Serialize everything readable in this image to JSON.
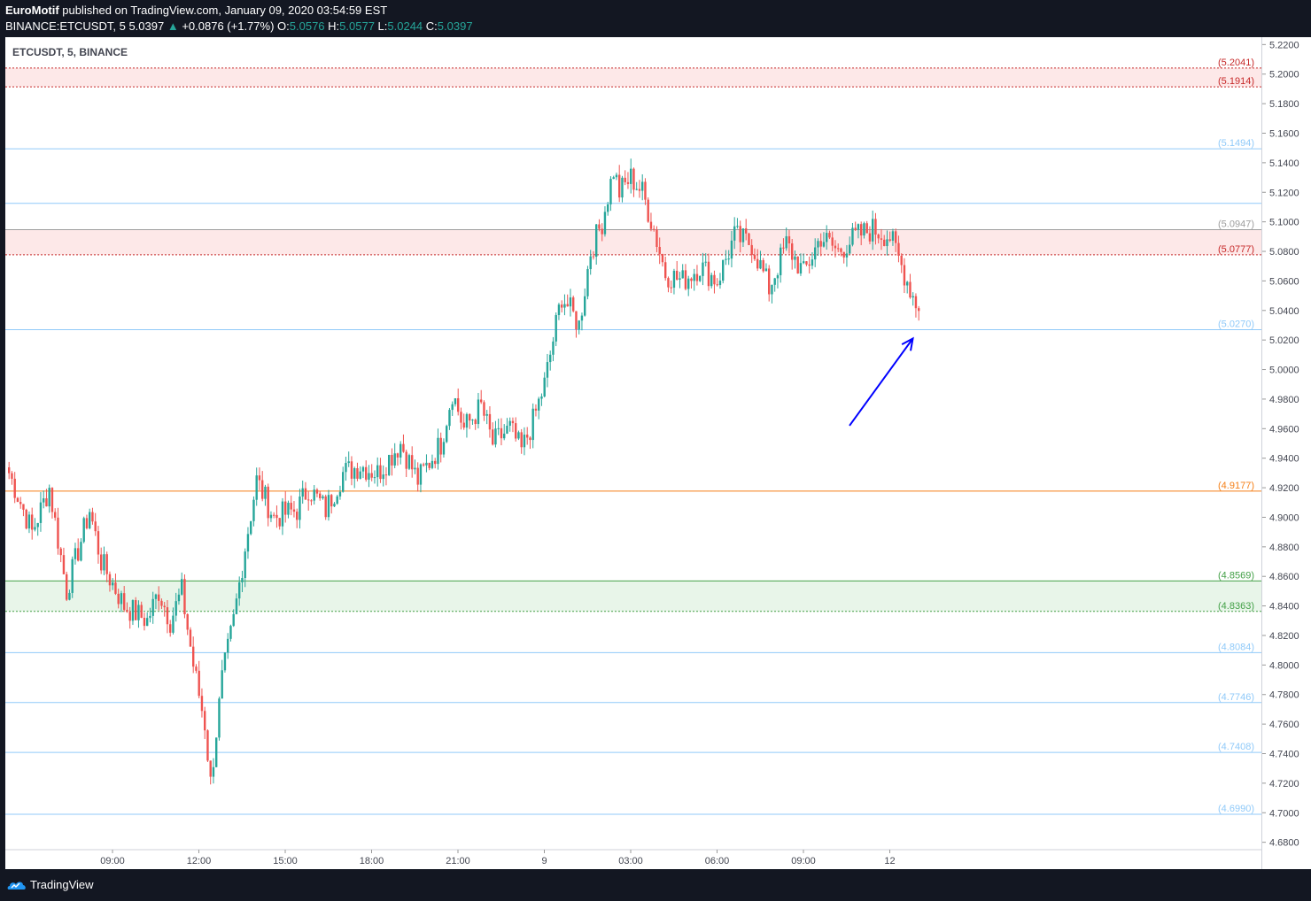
{
  "header": {
    "publisher": "EuroMotif",
    "published_text": "published on TradingView.com, January 09, 2020 03:54:59 EST",
    "symbol_line": "BINANCE:ETCUSDT, 5",
    "last": "5.0397",
    "change": "+0.0876 (+1.77%)",
    "o_label": "O:",
    "o": "5.0576",
    "h_label": "H:",
    "h": "5.0577",
    "l_label": "L:",
    "l": "5.0244",
    "c_label": "C:",
    "c": "5.0397"
  },
  "legend": {
    "symbol": "ETCUSDT, 5, BINANCE"
  },
  "footer": {
    "brand": "TradingView"
  },
  "colors": {
    "up": "#26a69a",
    "down": "#ef5350",
    "arrow": "#0000ff"
  },
  "chart_data": {
    "type": "candlestick",
    "ylim": [
      4.675,
      5.225
    ],
    "y_ticks": [
      "5.2200",
      "5.2000",
      "5.1800",
      "5.1600",
      "5.1400",
      "5.1200",
      "5.1000",
      "5.0800",
      "5.0600",
      "5.0400",
      "5.0200",
      "5.0000",
      "4.9800",
      "4.9600",
      "4.9400",
      "4.9200",
      "4.9000",
      "4.8800",
      "4.8600",
      "4.8400",
      "4.8200",
      "4.8000",
      "4.7800",
      "4.7600",
      "4.7400",
      "4.7200",
      "4.7000",
      "4.6800"
    ],
    "x_ticks": [
      "09:00",
      "12:00",
      "15:00",
      "18:00",
      "21:00",
      "9",
      "03:00",
      "06:00",
      "09:00",
      "12"
    ],
    "levels": [
      {
        "price": 5.2041,
        "label": "(5.2041)",
        "color": "#c62828"
      },
      {
        "price": 5.1914,
        "label": "(5.1914)",
        "color": "#c62828"
      },
      {
        "price": 5.1494,
        "label": "(5.1494)",
        "color": "#90caf9"
      },
      {
        "price": 5.1125,
        "label": "",
        "color": "#90caf9"
      },
      {
        "price": 5.0947,
        "label": "(5.0947)",
        "color": "#9e9e9e"
      },
      {
        "price": 5.0777,
        "label": "(5.0777)",
        "color": "#c62828"
      },
      {
        "price": 5.027,
        "label": "(5.0270)",
        "color": "#90caf9"
      },
      {
        "price": 4.9177,
        "label": "(4.9177)",
        "color": "#f57f17"
      },
      {
        "price": 4.8569,
        "label": "(4.8569)",
        "color": "#43a047"
      },
      {
        "price": 4.8363,
        "label": "(4.8363)",
        "color": "#43a047"
      },
      {
        "price": 4.8084,
        "label": "(4.8084)",
        "color": "#90caf9"
      },
      {
        "price": 4.7746,
        "label": "(4.7746)",
        "color": "#90caf9"
      },
      {
        "price": 4.7408,
        "label": "(4.7408)",
        "color": "#90caf9"
      },
      {
        "price": 4.699,
        "label": "(4.6990)",
        "color": "#90caf9"
      }
    ],
    "zones": [
      {
        "from": 5.1914,
        "to": 5.2041,
        "color": "#fde8e8"
      },
      {
        "from": 5.0777,
        "to": 5.0947,
        "color": "#fde8e8"
      },
      {
        "from": 4.8363,
        "to": 4.8569,
        "color": "#e8f5e9"
      }
    ],
    "anchors": [
      [
        0,
        4.93
      ],
      [
        8,
        4.89
      ],
      [
        14,
        4.92
      ],
      [
        20,
        4.85
      ],
      [
        28,
        4.905
      ],
      [
        32,
        4.87
      ],
      [
        40,
        4.84
      ],
      [
        48,
        4.83
      ],
      [
        52,
        4.85
      ],
      [
        56,
        4.83
      ],
      [
        60,
        4.85
      ],
      [
        64,
        4.8
      ],
      [
        68,
        4.76
      ],
      [
        70,
        4.72
      ],
      [
        74,
        4.79
      ],
      [
        78,
        4.83
      ],
      [
        82,
        4.88
      ],
      [
        86,
        4.925
      ],
      [
        92,
        4.9
      ],
      [
        100,
        4.905
      ],
      [
        104,
        4.92
      ],
      [
        110,
        4.905
      ],
      [
        116,
        4.93
      ],
      [
        122,
        4.935
      ],
      [
        128,
        4.93
      ],
      [
        136,
        4.95
      ],
      [
        142,
        4.925
      ],
      [
        150,
        4.95
      ],
      [
        154,
        4.985
      ],
      [
        158,
        4.96
      ],
      [
        164,
        4.975
      ],
      [
        168,
        4.95
      ],
      [
        174,
        4.96
      ],
      [
        178,
        4.945
      ],
      [
        182,
        4.965
      ],
      [
        186,
        4.99
      ],
      [
        192,
        5.05
      ],
      [
        198,
        5.03
      ],
      [
        202,
        5.08
      ],
      [
        206,
        5.1
      ],
      [
        210,
        5.135
      ],
      [
        212,
        5.12
      ],
      [
        216,
        5.13
      ],
      [
        220,
        5.12
      ],
      [
        224,
        5.095
      ],
      [
        228,
        5.065
      ],
      [
        234,
        5.06
      ],
      [
        240,
        5.07
      ],
      [
        246,
        5.06
      ],
      [
        252,
        5.09
      ],
      [
        258,
        5.085
      ],
      [
        264,
        5.055
      ],
      [
        270,
        5.085
      ],
      [
        276,
        5.065
      ],
      [
        282,
        5.09
      ],
      [
        288,
        5.08
      ],
      [
        294,
        5.09
      ],
      [
        300,
        5.095
      ],
      [
        306,
        5.09
      ],
      [
        310,
        5.07
      ],
      [
        314,
        5.05
      ],
      [
        316,
        5.04
      ]
    ],
    "candle_count": 317,
    "x_time_ticks_index": [
      24,
      54,
      84,
      114,
      144,
      174,
      204,
      234,
      264,
      294
    ],
    "annotation": {
      "type": "arrow",
      "from": [
        200,
        4.962
      ],
      "to": [
        222,
        5.021
      ]
    }
  }
}
